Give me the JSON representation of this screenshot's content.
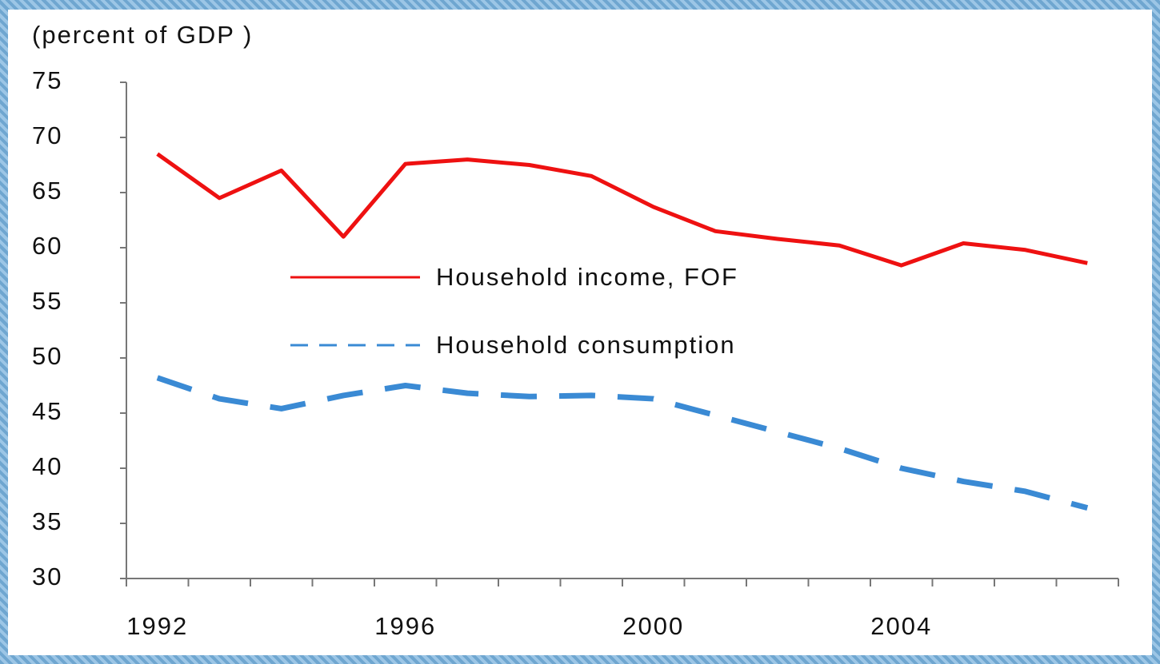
{
  "chart_data": {
    "type": "line",
    "title": "(percent of GDP )",
    "categories": [
      "1992",
      null,
      null,
      null,
      "1996",
      null,
      null,
      null,
      "2000",
      null,
      null,
      null,
      "2004",
      null,
      null,
      null
    ],
    "series": [
      {
        "name": "Household income, FOF",
        "color": "#ee1111",
        "dash": "solid",
        "values": [
          68.5,
          64.5,
          67,
          61,
          67.6,
          68,
          67.5,
          66.5,
          63.7,
          61.5,
          60.8,
          60.2,
          58.4,
          60.4,
          59.8,
          58.6
        ]
      },
      {
        "name": "Household consumption",
        "color": "#3a8ad4",
        "dash": "dashed",
        "values": [
          48.2,
          46.3,
          45.4,
          46.6,
          47.5,
          46.8,
          46.5,
          46.6,
          46.3,
          44.8,
          43.3,
          41.8,
          40,
          38.8,
          37.9,
          36.4
        ]
      }
    ],
    "ylim": [
      30,
      75
    ],
    "yticks": [
      30,
      35,
      40,
      45,
      50,
      55,
      60,
      65,
      70,
      75
    ],
    "grid": false
  }
}
